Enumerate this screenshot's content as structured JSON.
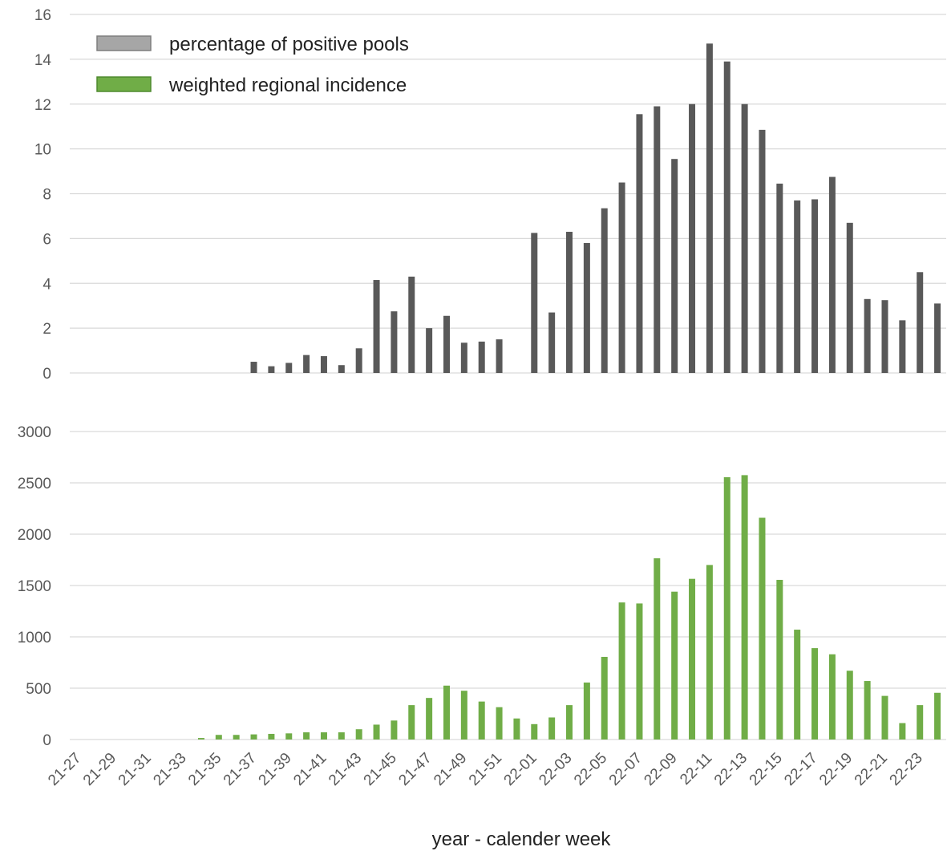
{
  "chart_data": [
    {
      "type": "bar",
      "ylim": [
        0,
        16
      ],
      "yticks": [
        0,
        2,
        4,
        6,
        8,
        10,
        12,
        14,
        16
      ],
      "grid": true,
      "legend_position": "top-left",
      "series": [
        {
          "name": "percentage of positive pools",
          "color": "#595959",
          "values": [
            null,
            null,
            null,
            null,
            null,
            null,
            null,
            null,
            null,
            null,
            0.5,
            0.3,
            0.45,
            0.8,
            0.75,
            0.35,
            1.1,
            4.15,
            2.75,
            4.3,
            2.0,
            2.55,
            1.35,
            1.4,
            1.5,
            null,
            6.25,
            2.7,
            6.3,
            5.8,
            7.35,
            8.5,
            11.55,
            11.9,
            9.55,
            12.0,
            14.7,
            13.9,
            12.0,
            10.85,
            8.45,
            7.7,
            7.75,
            8.75,
            6.7,
            3.3,
            3.25,
            2.35,
            4.5,
            3.1
          ]
        }
      ]
    },
    {
      "type": "bar",
      "ylim": [
        0,
        3000
      ],
      "yticks": [
        0,
        500,
        1000,
        1500,
        2000,
        2500,
        3000
      ],
      "grid": true,
      "xlabel": "year - calender week",
      "categories": [
        "21-27",
        "21-28",
        "21-29",
        "21-30",
        "21-31",
        "21-32",
        "21-33",
        "21-34",
        "21-35",
        "21-36",
        "21-37",
        "21-38",
        "21-39",
        "21-40",
        "21-41",
        "21-42",
        "21-43",
        "21-44",
        "21-45",
        "21-46",
        "21-47",
        "21-48",
        "21-49",
        "21-50",
        "21-51",
        "21-52",
        "22-01",
        "22-02",
        "22-03",
        "22-04",
        "22-05",
        "22-06",
        "22-07",
        "22-08",
        "22-09",
        "22-10",
        "22-11",
        "22-12",
        "22-13",
        "22-14",
        "22-15",
        "22-16",
        "22-17",
        "22-18",
        "22-19",
        "22-20",
        "22-21",
        "22-22",
        "22-23",
        "22-24"
      ],
      "tick_labels": [
        "21-27",
        "21-29",
        "21-31",
        "21-33",
        "21-35",
        "21-37",
        "21-39",
        "21-41",
        "21-43",
        "21-45",
        "21-47",
        "21-49",
        "21-51",
        "22-01",
        "22-03",
        "22-05",
        "22-07",
        "22-09",
        "22-11",
        "22-13",
        "22-15",
        "22-17",
        "22-19",
        "22-21",
        "22-23"
      ],
      "series": [
        {
          "name": "weighted regional incidence",
          "color": "#70ad47",
          "values": [
            null,
            null,
            null,
            null,
            null,
            null,
            null,
            15,
            45,
            45,
            50,
            55,
            60,
            70,
            70,
            70,
            100,
            145,
            185,
            335,
            405,
            525,
            475,
            370,
            315,
            205,
            150,
            215,
            335,
            555,
            805,
            1335,
            1325,
            1765,
            1440,
            1565,
            1700,
            2555,
            2575,
            2160,
            1555,
            1070,
            890,
            830,
            670,
            570,
            425,
            160,
            335,
            455
          ]
        }
      ]
    }
  ]
}
